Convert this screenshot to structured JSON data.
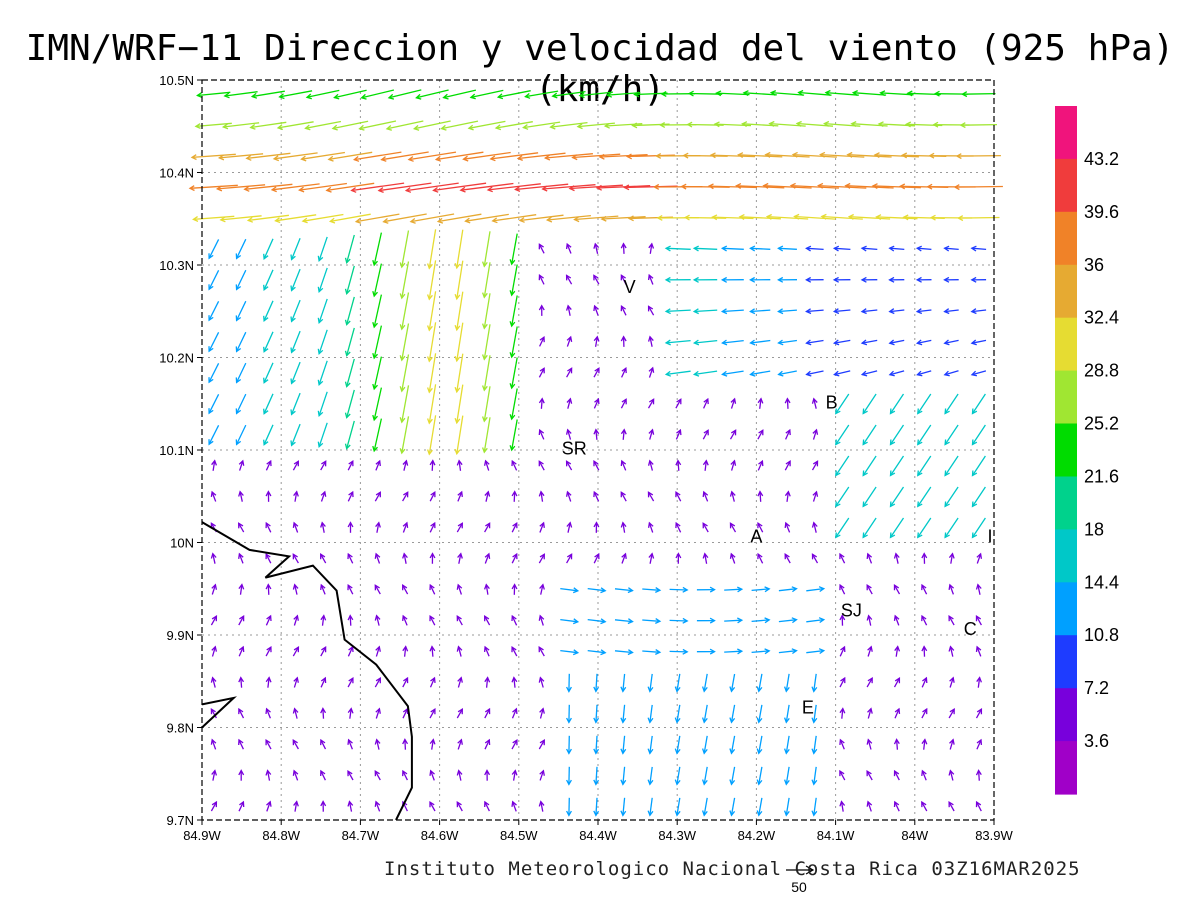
{
  "title": "IMN/WRF−11 Direccion y velocidad del viento (925 hPa)(km/h)",
  "credit": "Instituto Meteorologico Nacional Costa Rica 03Z16MAR2025",
  "reference_vector": {
    "value": 50
  },
  "chart_data": {
    "type": "vector-field",
    "xlim": [
      -84.9,
      -83.9
    ],
    "ylim": [
      9.7,
      10.5
    ],
    "x_ticks": [
      {
        "v": -84.9,
        "label": "84.9W"
      },
      {
        "v": -84.8,
        "label": "84.8W"
      },
      {
        "v": -84.7,
        "label": "84.7W"
      },
      {
        "v": -84.6,
        "label": "84.6W"
      },
      {
        "v": -84.5,
        "label": "84.5W"
      },
      {
        "v": -84.4,
        "label": "84.4W"
      },
      {
        "v": -84.3,
        "label": "84.3W"
      },
      {
        "v": -84.2,
        "label": "84.2W"
      },
      {
        "v": -84.1,
        "label": "84.1W"
      },
      {
        "v": -84.0,
        "label": "84W"
      },
      {
        "v": -83.9,
        "label": "83.9W"
      }
    ],
    "y_ticks": [
      {
        "v": 10.5,
        "label": "10.5N"
      },
      {
        "v": 10.4,
        "label": "10.4N"
      },
      {
        "v": 10.3,
        "label": "10.3N"
      },
      {
        "v": 10.2,
        "label": "10.2N"
      },
      {
        "v": 10.1,
        "label": "10.1N"
      },
      {
        "v": 10.0,
        "label": "10N"
      },
      {
        "v": 9.9,
        "label": "9.9N"
      },
      {
        "v": 9.8,
        "label": "9.8N"
      },
      {
        "v": 9.7,
        "label": "9.7N"
      }
    ],
    "grid": true,
    "colorbar": {
      "labels": [
        "43.2",
        "39.6",
        "36",
        "32.4",
        "28.8",
        "25.2",
        "21.6",
        "18",
        "14.4",
        "10.8",
        "7.2",
        "3.6"
      ],
      "colors": [
        "#f0147c",
        "#f03c3c",
        "#f08228",
        "#e6aa32",
        "#e6dc32",
        "#a0e632",
        "#00dc00",
        "#00d28c",
        "#00c8c8",
        "#00a0ff",
        "#1e3cff",
        "#7800dc",
        "#a000c8"
      ]
    },
    "places": [
      {
        "label": "V",
        "lon": -84.36,
        "lat": 10.27
      },
      {
        "label": "B",
        "lon": -84.105,
        "lat": 10.145
      },
      {
        "label": "SR",
        "lon": -84.43,
        "lat": 10.095
      },
      {
        "label": "A",
        "lon": -84.2,
        "lat": 10.0
      },
      {
        "label": "SJ",
        "lon": -84.08,
        "lat": 9.92
      },
      {
        "label": "C",
        "lon": -83.93,
        "lat": 9.9
      },
      {
        "label": "E",
        "lon": -84.135,
        "lat": 9.815
      },
      {
        "label": "I",
        "lon": -83.905,
        "lat": 10.0
      }
    ],
    "coastline": [
      [
        -84.9,
        10.022
      ],
      [
        -84.84,
        9.992
      ],
      [
        -84.79,
        9.985
      ],
      [
        -84.82,
        9.962
      ],
      [
        -84.76,
        9.975
      ],
      [
        -84.73,
        9.948
      ],
      [
        -84.72,
        9.895
      ],
      [
        -84.68,
        9.868
      ],
      [
        -84.64,
        9.823
      ],
      [
        -84.635,
        9.79
      ],
      [
        -84.635,
        9.735
      ],
      [
        -84.655,
        9.7
      ]
    ],
    "coastline2": [
      [
        -84.9,
        9.825
      ],
      [
        -84.86,
        9.832
      ],
      [
        -84.9,
        9.8
      ]
    ]
  }
}
